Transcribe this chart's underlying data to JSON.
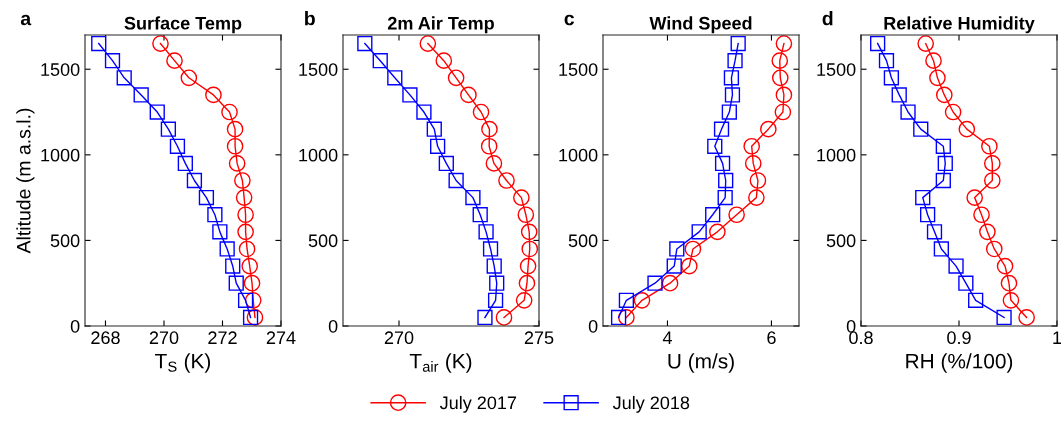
{
  "chart_data": [
    {
      "type": "line",
      "title": "Surface Temp",
      "annotations": [
        "a"
      ],
      "xlabel": "T$_{S}$ (K)",
      "ylabel": "Altitude (m a.s.l.)",
      "xlim": [
        267.3,
        274
      ],
      "xticks": [
        268,
        270,
        272,
        274
      ],
      "ylim": [
        0,
        1700
      ],
      "yticks": [
        0,
        500,
        1000,
        1500
      ],
      "legend": "bottom",
      "series": [
        {
          "name": "July 2017",
          "color": "#ff0000",
          "marker": "circle",
          "x": [
            273.11,
            273.05,
            273.01,
            272.93,
            272.84,
            272.79,
            272.79,
            272.74,
            272.68,
            272.5,
            272.43,
            272.43,
            272.24,
            271.69,
            270.85,
            270.36,
            269.88
          ],
          "values": [
            50,
            150,
            250,
            350,
            450,
            550,
            650,
            750,
            850,
            950,
            1050,
            1150,
            1250,
            1350,
            1450,
            1550,
            1650
          ]
        },
        {
          "name": "July 2018",
          "color": "#0000ff",
          "marker": "square",
          "x": [
            272.96,
            272.79,
            272.47,
            272.35,
            272.16,
            271.91,
            271.74,
            271.45,
            271.04,
            270.73,
            270.46,
            270.15,
            269.77,
            269.22,
            268.64,
            268.24,
            267.77
          ],
          "values": [
            50,
            150,
            250,
            350,
            450,
            550,
            650,
            750,
            850,
            950,
            1050,
            1150,
            1250,
            1350,
            1450,
            1550,
            1650
          ]
        }
      ]
    },
    {
      "type": "line",
      "title": "2m Air Temp",
      "annotations": [
        "b"
      ],
      "xlabel": "T$_{air}$ (K)",
      "xlim": [
        268,
        275
      ],
      "xticks": [
        270,
        275
      ],
      "ylim": [
        0,
        1700
      ],
      "yticks": [
        0,
        500,
        1000,
        1500
      ],
      "series": [
        {
          "color": "#ff0000",
          "marker": "circle",
          "x": [
            273.75,
            274.47,
            274.57,
            274.61,
            274.67,
            274.65,
            274.53,
            274.37,
            273.84,
            273.39,
            273.22,
            273.23,
            272.93,
            272.48,
            272.04,
            271.6,
            271.03
          ],
          "values": [
            50,
            150,
            250,
            350,
            450,
            550,
            650,
            750,
            850,
            950,
            1050,
            1150,
            1250,
            1350,
            1450,
            1550,
            1650
          ]
        },
        {
          "color": "#0000ff",
          "marker": "square",
          "x": [
            273.07,
            273.45,
            273.49,
            273.4,
            273.27,
            273.11,
            272.9,
            272.64,
            272.04,
            271.69,
            271.38,
            271.26,
            270.89,
            270.39,
            269.85,
            269.33,
            268.78
          ],
          "values": [
            50,
            150,
            250,
            350,
            450,
            550,
            650,
            750,
            850,
            950,
            1050,
            1150,
            1250,
            1350,
            1450,
            1550,
            1650
          ]
        }
      ]
    },
    {
      "type": "line",
      "title": "Wind Speed",
      "annotations": [
        "c"
      ],
      "xlabel": "U (m/s)",
      "xlim": [
        2.76,
        6.53
      ],
      "xticks": [
        4,
        6
      ],
      "ylim": [
        0,
        1700
      ],
      "yticks": [
        0,
        500,
        1000,
        1500
      ],
      "series": [
        {
          "color": "#ff0000",
          "marker": "circle",
          "x": [
            3.21,
            3.51,
            4.05,
            4.42,
            4.49,
            4.96,
            5.33,
            5.71,
            5.74,
            5.65,
            5.62,
            5.94,
            6.22,
            6.24,
            6.17,
            6.16,
            6.24
          ],
          "values": [
            50,
            150,
            250,
            350,
            450,
            550,
            650,
            750,
            850,
            950,
            1050,
            1150,
            1250,
            1350,
            1450,
            1550,
            1650
          ]
        },
        {
          "color": "#0000ff",
          "marker": "square",
          "x": [
            3.06,
            3.21,
            3.76,
            4.13,
            4.18,
            4.61,
            4.87,
            5.11,
            5.12,
            5.06,
            4.91,
            5.04,
            5.19,
            5.25,
            5.23,
            5.3,
            5.36
          ],
          "values": [
            50,
            150,
            250,
            350,
            450,
            550,
            650,
            750,
            850,
            950,
            1050,
            1150,
            1250,
            1350,
            1450,
            1550,
            1650
          ]
        }
      ]
    },
    {
      "type": "line",
      "title": "Relative Humidity",
      "annotations": [
        "d"
      ],
      "xlabel": "RH (%/100)",
      "xlim": [
        0.8,
        1
      ],
      "xticks": [
        0.8,
        0.9,
        1
      ],
      "ylim": [
        0,
        1700
      ],
      "yticks": [
        0,
        500,
        1000,
        1500
      ],
      "series": [
        {
          "color": "#ff0000",
          "marker": "circle",
          "x": [
            0.969,
            0.953,
            0.951,
            0.947,
            0.936,
            0.929,
            0.923,
            0.916,
            0.934,
            0.934,
            0.931,
            0.908,
            0.894,
            0.885,
            0.878,
            0.874,
            0.866
          ],
          "values": [
            50,
            150,
            250,
            350,
            450,
            550,
            650,
            750,
            850,
            950,
            1050,
            1150,
            1250,
            1350,
            1450,
            1550,
            1650
          ]
        },
        {
          "color": "#0000ff",
          "marker": "square",
          "x": [
            0.946,
            0.917,
            0.907,
            0.897,
            0.882,
            0.875,
            0.868,
            0.863,
            0.884,
            0.886,
            0.884,
            0.861,
            0.848,
            0.839,
            0.831,
            0.826,
            0.817
          ],
          "values": [
            50,
            150,
            250,
            350,
            450,
            550,
            650,
            750,
            850,
            950,
            1050,
            1150,
            1250,
            1350,
            1450,
            1550,
            1650
          ]
        }
      ]
    }
  ]
}
